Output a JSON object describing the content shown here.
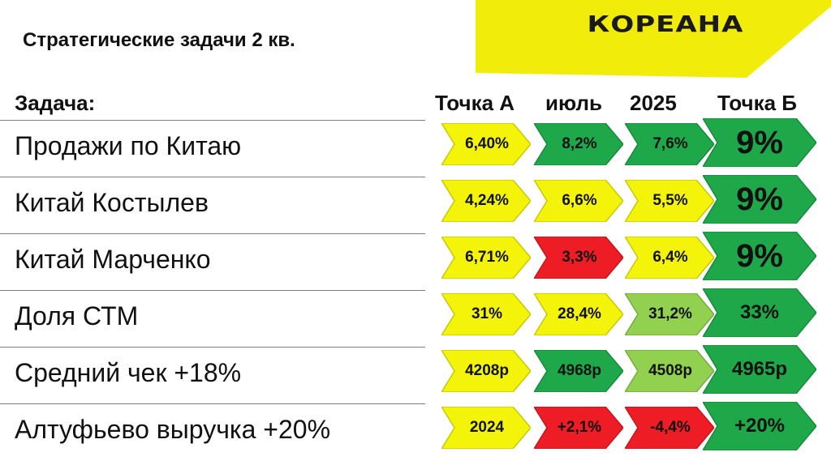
{
  "logo": {
    "text": "КОРЕАНА",
    "band_color": "#f2ec0a"
  },
  "title": "Стратегические задачи 2 кв.",
  "headers": {
    "task": "Задача:",
    "point_a": "Точка А",
    "july": "июль",
    "year": "2025",
    "point_b": "Точка Б"
  },
  "colors": {
    "yellow": "#f4f40a",
    "green": "#1ea84a",
    "light_green": "#92d050",
    "red": "#ee1c24"
  },
  "rows": [
    {
      "label": "Продажи по Китаю",
      "a": {
        "text": "6,40%",
        "color": "yellow"
      },
      "jul": {
        "text": "8,2%",
        "color": "green"
      },
      "y2025": {
        "text": "7,6%",
        "color": "green"
      },
      "b": {
        "text": "9%",
        "color": "green"
      }
    },
    {
      "label": "Китай Костылев",
      "a": {
        "text": "4,24%",
        "color": "yellow"
      },
      "jul": {
        "text": "6,6%",
        "color": "yellow"
      },
      "y2025": {
        "text": "5,5%",
        "color": "yellow"
      },
      "b": {
        "text": "9%",
        "color": "green"
      }
    },
    {
      "label": "Китай Марченко",
      "a": {
        "text": "6,71%",
        "color": "yellow"
      },
      "jul": {
        "text": "3,3%",
        "color": "red"
      },
      "y2025": {
        "text": "6,4%",
        "color": "yellow"
      },
      "b": {
        "text": "9%",
        "color": "green"
      }
    },
    {
      "label": "Доля СТМ",
      "a": {
        "text": "31%",
        "color": "yellow"
      },
      "jul": {
        "text": "28,4%",
        "color": "yellow"
      },
      "y2025": {
        "text": "31,2%",
        "color": "light_green"
      },
      "b": {
        "text": "33%",
        "color": "green"
      }
    },
    {
      "label": "Средний чек +18%",
      "a": {
        "text": "4208р",
        "color": "yellow"
      },
      "jul": {
        "text": "4968р",
        "color": "green"
      },
      "y2025": {
        "text": "4508р",
        "color": "light_green"
      },
      "b": {
        "text": "4965р",
        "color": "green"
      }
    },
    {
      "label": "Алтуфьево выручка +20%",
      "a": {
        "text": "2024",
        "color": "yellow"
      },
      "jul": {
        "text": "+2,1%",
        "color": "red"
      },
      "y2025": {
        "text": "-4,4%",
        "color": "red"
      },
      "b": {
        "text": "+20%",
        "color": "green"
      }
    }
  ]
}
